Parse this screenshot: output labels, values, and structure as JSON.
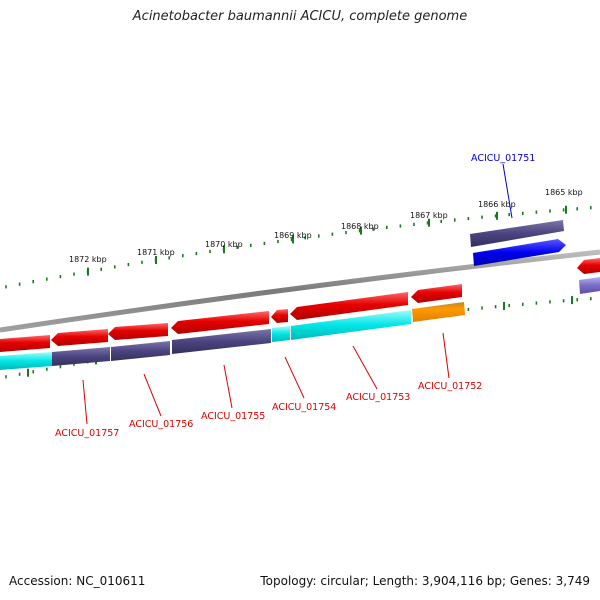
{
  "title": "Acinetobacter baumannii ACICU, complete genome",
  "footer": {
    "accession": "Accession: NC_010611",
    "summary": "Topology: circular; Length: 3,904,116 bp; Genes: 3,749"
  },
  "colors": {
    "backbone": "#8a8a8a",
    "tick": "#1a7a1a",
    "red_gene": "#e60000",
    "navy_gene": "#4b4480",
    "cyan_gene": "#00e5e5",
    "orange_gene": "#ff9900",
    "blue_gene": "#0000ee",
    "purple_gene": "#7a6cc8",
    "label_red": "#dd0000",
    "label_blue": "#0000cc"
  },
  "ticks": [
    {
      "label": "1872 kbp"
    },
    {
      "label": "1871 kbp"
    },
    {
      "label": "1870 kbp"
    },
    {
      "label": "1869 kbp"
    },
    {
      "label": "1868 kbp"
    },
    {
      "label": "1867 kbp"
    },
    {
      "label": "1866 kbp"
    },
    {
      "label": "1865 kbp"
    }
  ],
  "gene_labels": [
    {
      "name": "ACICU_01751",
      "color": "blue"
    },
    {
      "name": "ACICU_01752",
      "color": "red"
    },
    {
      "name": "ACICU_01753",
      "color": "red"
    },
    {
      "name": "ACICU_01754",
      "color": "red"
    },
    {
      "name": "ACICU_01755",
      "color": "red"
    },
    {
      "name": "ACICU_01756",
      "color": "red"
    },
    {
      "name": "ACICU_01757",
      "color": "red"
    }
  ]
}
